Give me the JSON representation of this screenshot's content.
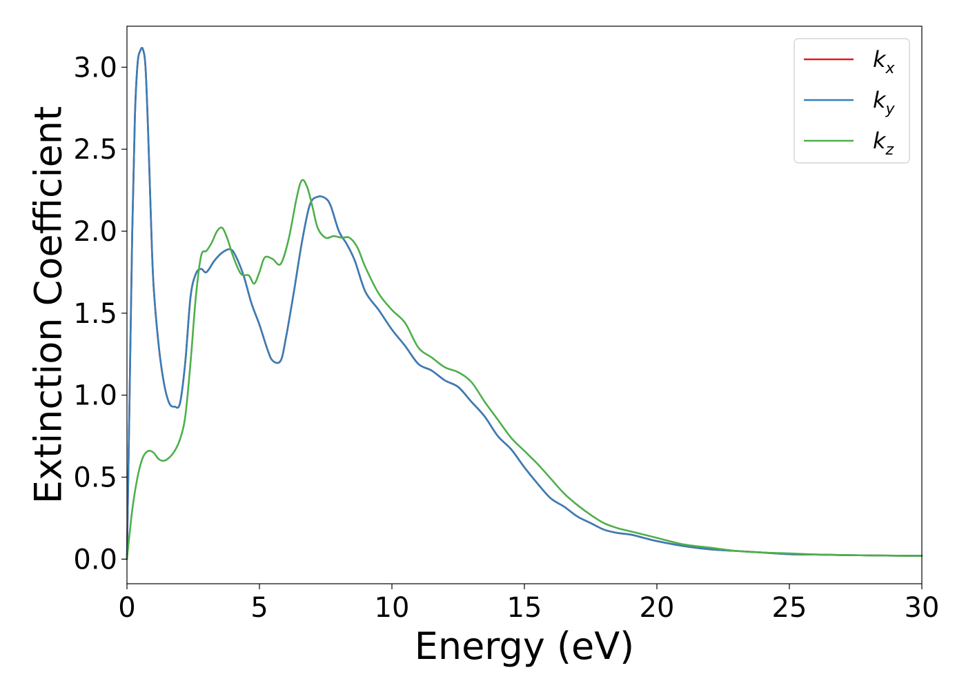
{
  "chart_data": {
    "type": "line",
    "title": "",
    "xlabel": "Energy (eV)",
    "ylabel": "Extinction Coefficient",
    "xlim": [
      0,
      30
    ],
    "ylim": [
      -0.15,
      3.25
    ],
    "xticks": [
      0,
      5,
      10,
      15,
      20,
      25,
      30
    ],
    "xtick_labels": [
      "0",
      "5",
      "10",
      "15",
      "20",
      "25",
      "30"
    ],
    "yticks": [
      0.0,
      0.5,
      1.0,
      1.5,
      2.0,
      2.5,
      3.0
    ],
    "ytick_labels": [
      "0.0",
      "0.5",
      "1.0",
      "1.5",
      "2.0",
      "2.5",
      "3.0"
    ],
    "grid": false,
    "legend_position": "top-right",
    "series": [
      {
        "name": "k_x",
        "legend_base": "k",
        "legend_sub": "x",
        "color": "#e41a1c",
        "x": [
          0,
          0.1,
          0.2,
          0.3,
          0.4,
          0.5,
          0.6,
          0.7,
          0.8,
          0.9,
          1.0,
          1.2,
          1.4,
          1.6,
          1.8,
          2.0,
          2.2,
          2.4,
          2.6,
          2.8,
          3.0,
          3.3,
          3.6,
          3.9,
          4.1,
          4.4,
          4.7,
          5.0,
          5.3,
          5.5,
          5.8,
          6.0,
          6.3,
          6.6,
          6.9,
          7.2,
          7.5,
          7.7,
          8.0,
          8.3,
          8.6,
          9.0,
          9.5,
          10.0,
          10.5,
          11.0,
          11.5,
          12.0,
          12.5,
          13.0,
          13.5,
          14.0,
          14.5,
          15.0,
          15.5,
          16.0,
          16.5,
          17.0,
          17.5,
          18.0,
          18.5,
          19.0,
          19.5,
          20.0,
          21.0,
          22.0,
          23.0,
          24.0,
          25.0,
          26.0,
          27.0,
          28.0,
          29.0,
          30.0
        ],
        "values": [
          0.0,
          1.0,
          2.0,
          2.7,
          3.02,
          3.1,
          3.11,
          3.0,
          2.6,
          2.1,
          1.68,
          1.3,
          1.07,
          0.95,
          0.93,
          0.95,
          1.2,
          1.6,
          1.74,
          1.77,
          1.75,
          1.82,
          1.87,
          1.89,
          1.85,
          1.73,
          1.56,
          1.43,
          1.28,
          1.21,
          1.21,
          1.35,
          1.63,
          1.93,
          2.16,
          2.21,
          2.2,
          2.15,
          2.0,
          1.92,
          1.82,
          1.63,
          1.52,
          1.4,
          1.3,
          1.19,
          1.15,
          1.09,
          1.05,
          0.96,
          0.87,
          0.75,
          0.67,
          0.56,
          0.46,
          0.37,
          0.32,
          0.26,
          0.22,
          0.18,
          0.16,
          0.15,
          0.13,
          0.11,
          0.08,
          0.06,
          0.05,
          0.04,
          0.03,
          0.028,
          0.025,
          0.023,
          0.021,
          0.02
        ]
      },
      {
        "name": "k_y",
        "legend_base": "k",
        "legend_sub": "y",
        "color": "#377eb8",
        "x": [
          0,
          0.1,
          0.2,
          0.3,
          0.4,
          0.5,
          0.6,
          0.7,
          0.8,
          0.9,
          1.0,
          1.2,
          1.4,
          1.6,
          1.8,
          2.0,
          2.2,
          2.4,
          2.6,
          2.8,
          3.0,
          3.3,
          3.6,
          3.9,
          4.1,
          4.4,
          4.7,
          5.0,
          5.3,
          5.5,
          5.8,
          6.0,
          6.3,
          6.6,
          6.9,
          7.2,
          7.5,
          7.7,
          8.0,
          8.3,
          8.6,
          9.0,
          9.5,
          10.0,
          10.5,
          11.0,
          11.5,
          12.0,
          12.5,
          13.0,
          13.5,
          14.0,
          14.5,
          15.0,
          15.5,
          16.0,
          16.5,
          17.0,
          17.5,
          18.0,
          18.5,
          19.0,
          19.5,
          20.0,
          21.0,
          22.0,
          23.0,
          24.0,
          25.0,
          26.0,
          27.0,
          28.0,
          29.0,
          30.0
        ],
        "values": [
          0.0,
          1.0,
          2.0,
          2.7,
          3.02,
          3.1,
          3.11,
          3.0,
          2.6,
          2.1,
          1.68,
          1.3,
          1.07,
          0.95,
          0.93,
          0.95,
          1.2,
          1.6,
          1.74,
          1.77,
          1.75,
          1.82,
          1.87,
          1.89,
          1.85,
          1.73,
          1.56,
          1.43,
          1.28,
          1.21,
          1.21,
          1.35,
          1.63,
          1.93,
          2.16,
          2.21,
          2.2,
          2.15,
          2.0,
          1.92,
          1.82,
          1.63,
          1.52,
          1.4,
          1.3,
          1.19,
          1.15,
          1.09,
          1.05,
          0.96,
          0.87,
          0.75,
          0.67,
          0.56,
          0.46,
          0.37,
          0.32,
          0.26,
          0.22,
          0.18,
          0.16,
          0.15,
          0.13,
          0.11,
          0.08,
          0.06,
          0.05,
          0.04,
          0.03,
          0.028,
          0.025,
          0.023,
          0.021,
          0.02
        ]
      },
      {
        "name": "k_z",
        "legend_base": "k",
        "legend_sub": "z",
        "color": "#4daf4a",
        "x": [
          0,
          0.2,
          0.4,
          0.6,
          0.8,
          1.0,
          1.2,
          1.4,
          1.6,
          1.8,
          2.0,
          2.2,
          2.4,
          2.6,
          2.8,
          3.0,
          3.2,
          3.4,
          3.6,
          3.8,
          4.0,
          4.3,
          4.6,
          4.8,
          5.0,
          5.2,
          5.5,
          5.8,
          6.1,
          6.4,
          6.6,
          6.8,
          7.0,
          7.2,
          7.5,
          7.8,
          8.1,
          8.4,
          8.7,
          9.0,
          9.5,
          10.0,
          10.5,
          11.0,
          11.5,
          12.0,
          12.5,
          13.0,
          13.5,
          14.0,
          14.5,
          15.0,
          15.5,
          16.0,
          16.5,
          17.0,
          17.5,
          18.0,
          18.5,
          19.0,
          19.5,
          20.0,
          21.0,
          22.0,
          23.0,
          24.0,
          25.0,
          26.0,
          27.0,
          28.0,
          29.0,
          30.0
        ],
        "values": [
          0.0,
          0.3,
          0.5,
          0.62,
          0.66,
          0.65,
          0.61,
          0.6,
          0.62,
          0.66,
          0.73,
          0.87,
          1.2,
          1.6,
          1.85,
          1.88,
          1.93,
          2.0,
          2.02,
          1.95,
          1.85,
          1.74,
          1.73,
          1.68,
          1.75,
          1.84,
          1.83,
          1.8,
          1.95,
          2.2,
          2.31,
          2.27,
          2.15,
          2.02,
          1.96,
          1.97,
          1.96,
          1.96,
          1.9,
          1.78,
          1.62,
          1.52,
          1.44,
          1.29,
          1.23,
          1.17,
          1.14,
          1.08,
          0.96,
          0.85,
          0.74,
          0.66,
          0.58,
          0.49,
          0.4,
          0.33,
          0.27,
          0.22,
          0.19,
          0.17,
          0.15,
          0.13,
          0.09,
          0.07,
          0.05,
          0.04,
          0.035,
          0.028,
          0.025,
          0.023,
          0.021,
          0.02
        ]
      }
    ]
  }
}
